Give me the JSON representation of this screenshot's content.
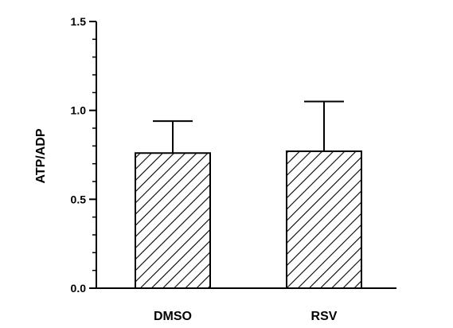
{
  "chart_data": {
    "type": "bar",
    "categories": [
      "DMSO",
      "RSV"
    ],
    "values": [
      0.76,
      0.77
    ],
    "errors": [
      0.18,
      0.28
    ],
    "xlabel": "",
    "ylabel": "ATP/ADP",
    "ylim": [
      0,
      1.5
    ],
    "yticks": [
      "0.0",
      "0.5",
      "1.0",
      "1.5"
    ],
    "grid": false,
    "bar_fill": "diagonal-hatch",
    "bar_color": "#000000"
  }
}
